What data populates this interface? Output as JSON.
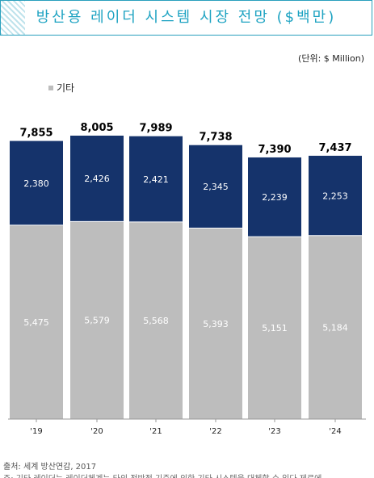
{
  "title": "방산용 레이더 시스템 시장 전망 ($백만)",
  "unit_note": "(단위: $ Million)",
  "source": "출처: 세계 방산연감, 2017",
  "note": "주: 기타 레이더는 레이더체계는 타의 전반적 기준에 의한 기타 시스템을 대체할 수 있다 제로에",
  "colors": {
    "top_segment": "#15336b",
    "bottom_segment": "#bdbdbd"
  },
  "chart_data": {
    "type": "bar",
    "stacked": true,
    "categories": [
      "'19",
      "'20",
      "'21",
      "'22",
      "'23",
      "'24"
    ],
    "series": [
      {
        "name": "기타",
        "values": [
          5475,
          5579,
          5568,
          5393,
          5151,
          5184
        ]
      },
      {
        "values": [
          2380,
          2426,
          2421,
          2345,
          2239,
          2253
        ]
      }
    ],
    "totals": [
      7855,
      8005,
      7989,
      7738,
      7390,
      7437
    ],
    "total_labels": [
      "7,855",
      "8,005",
      "7,989",
      "7,738",
      "7,390",
      "7,437"
    ],
    "bottom_labels": [
      "5,475",
      "5,579",
      "5,568",
      "5,393",
      "5,151",
      "5,184"
    ],
    "top_labels": [
      "2,380",
      "2,426",
      "2,421",
      "2,345",
      "2,239",
      "2,253"
    ],
    "ylim": [
      0,
      8005
    ],
    "legend": {
      "entries": [
        "기타"
      ],
      "placement": "top-left"
    },
    "grid": false
  }
}
